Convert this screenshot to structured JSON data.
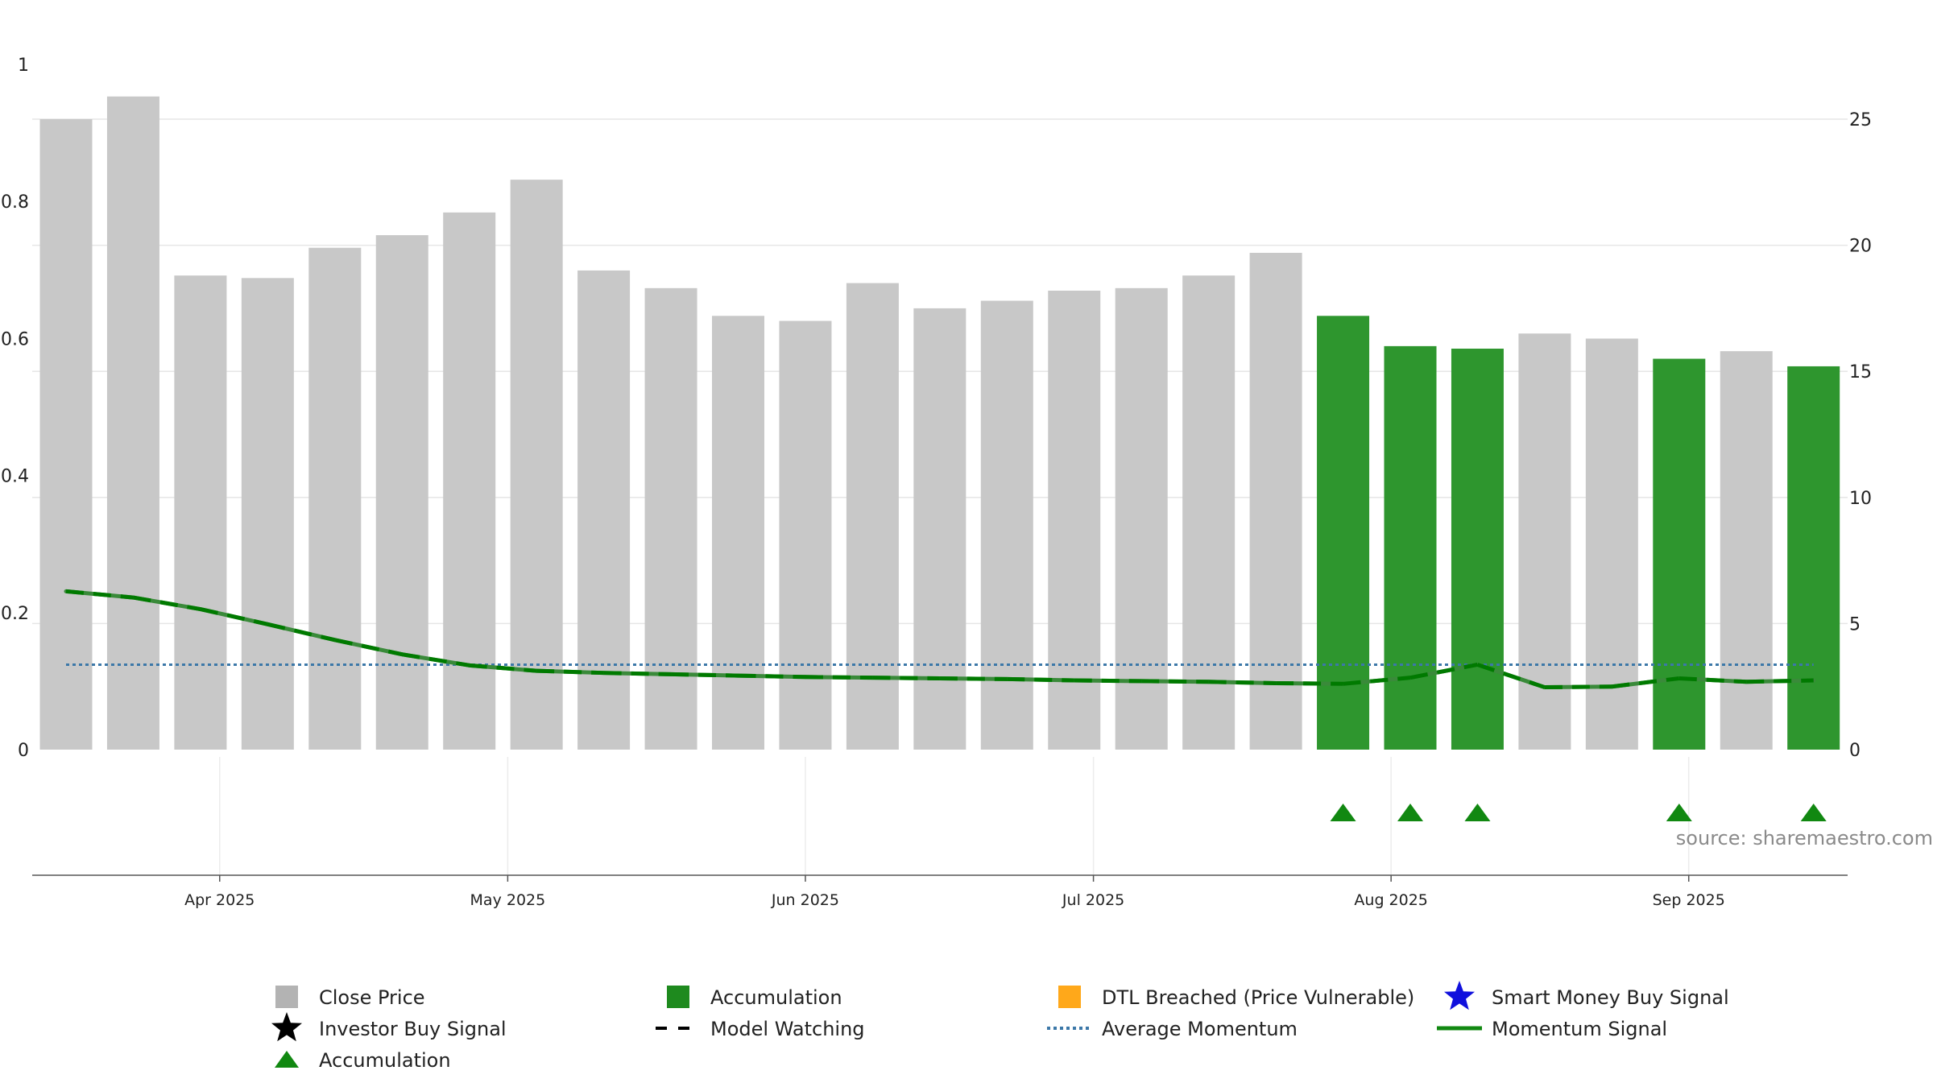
{
  "chart_data": {
    "type": "bar",
    "title": "",
    "xlabel": "",
    "ylabel_left": "",
    "ylabel_right": "",
    "left_axis": {
      "ylim": [
        0,
        1
      ],
      "ticks": [
        "0",
        "0.2",
        "0.4",
        "0.6",
        "0.8",
        "1"
      ]
    },
    "right_axis": {
      "ylim": [
        0,
        27
      ],
      "ticks": [
        "0",
        "5",
        "10",
        "15",
        "20",
        "25"
      ]
    },
    "x_ticks": [
      "Apr 2025",
      "May 2025",
      "Jun 2025",
      "Jul 2025",
      "Aug 2025",
      "Sep 2025"
    ],
    "grid": true,
    "colors": {
      "close_price": "#c8c8c8",
      "accumulation_bar": "#2e962e",
      "momentum": "#3a8a3a",
      "model_watching": "#007a00",
      "average_momentum": "#3c78a8",
      "triangle": "#118811",
      "dtl": "#ffa81a",
      "smart_money": "#1010dd",
      "investor": "#000000"
    },
    "bars": [
      {
        "date": "2025-03-16",
        "close": 25.0,
        "accumulation": false
      },
      {
        "date": "2025-03-23",
        "close": 25.9,
        "accumulation": false
      },
      {
        "date": "2025-03-30",
        "close": 18.8,
        "accumulation": false
      },
      {
        "date": "2025-04-06",
        "close": 18.7,
        "accumulation": false
      },
      {
        "date": "2025-04-13",
        "close": 19.9,
        "accumulation": false
      },
      {
        "date": "2025-04-20",
        "close": 20.4,
        "accumulation": false
      },
      {
        "date": "2025-04-27",
        "close": 21.3,
        "accumulation": false
      },
      {
        "date": "2025-05-04",
        "close": 22.6,
        "accumulation": false
      },
      {
        "date": "2025-05-11",
        "close": 19.0,
        "accumulation": false
      },
      {
        "date": "2025-05-18",
        "close": 18.3,
        "accumulation": false
      },
      {
        "date": "2025-05-25",
        "close": 17.2,
        "accumulation": false
      },
      {
        "date": "2025-06-01",
        "close": 17.0,
        "accumulation": false
      },
      {
        "date": "2025-06-08",
        "close": 18.5,
        "accumulation": false
      },
      {
        "date": "2025-06-15",
        "close": 17.5,
        "accumulation": false
      },
      {
        "date": "2025-06-22",
        "close": 17.8,
        "accumulation": false
      },
      {
        "date": "2025-06-29",
        "close": 18.2,
        "accumulation": false
      },
      {
        "date": "2025-07-06",
        "close": 18.3,
        "accumulation": false
      },
      {
        "date": "2025-07-13",
        "close": 18.8,
        "accumulation": false
      },
      {
        "date": "2025-07-20",
        "close": 19.7,
        "accumulation": false
      },
      {
        "date": "2025-07-27",
        "close": 17.2,
        "accumulation": true
      },
      {
        "date": "2025-08-03",
        "close": 16.0,
        "accumulation": true
      },
      {
        "date": "2025-08-10",
        "close": 15.9,
        "accumulation": true
      },
      {
        "date": "2025-08-17",
        "close": 16.5,
        "accumulation": false
      },
      {
        "date": "2025-08-24",
        "close": 16.3,
        "accumulation": false
      },
      {
        "date": "2025-08-31",
        "close": 15.5,
        "accumulation": true
      },
      {
        "date": "2025-09-07",
        "close": 15.8,
        "accumulation": false
      },
      {
        "date": "2025-09-14",
        "close": 15.2,
        "accumulation": true
      }
    ],
    "momentum": [
      0.231,
      0.222,
      0.205,
      0.183,
      0.16,
      0.139,
      0.123,
      0.115,
      0.112,
      0.11,
      0.108,
      0.106,
      0.105,
      0.104,
      0.103,
      0.101,
      0.1,
      0.099,
      0.097,
      0.096,
      0.105,
      0.124,
      0.091,
      0.092,
      0.104,
      0.099,
      0.101
    ],
    "average_momentum": 0.124,
    "accumulation_markers": [
      "2025-07-27",
      "2025-08-03",
      "2025-08-10",
      "2025-08-31",
      "2025-09-14"
    ],
    "legend": [
      {
        "label": "Close Price",
        "symbol": "square",
        "color": "#b3b3b3"
      },
      {
        "label": "Accumulation",
        "symbol": "square",
        "color": "#1e8a1e"
      },
      {
        "label": "DTL Breached (Price Vulnerable)",
        "symbol": "square",
        "color": "#ffa81a"
      },
      {
        "label": "Smart Money Buy Signal",
        "symbol": "star",
        "color": "#1010dd"
      },
      {
        "label": "Investor Buy Signal",
        "symbol": "star",
        "color": "#000000"
      },
      {
        "label": "Model Watching",
        "symbol": "dash",
        "color": "#000000"
      },
      {
        "label": "Average Momentum",
        "symbol": "dotted",
        "color": "#3c78a8"
      },
      {
        "label": "Momentum Signal",
        "symbol": "line",
        "color": "#118811"
      },
      {
        "label": "Accumulation",
        "symbol": "triangle",
        "color": "#118811"
      }
    ],
    "source": "source: sharemaestro.com"
  }
}
